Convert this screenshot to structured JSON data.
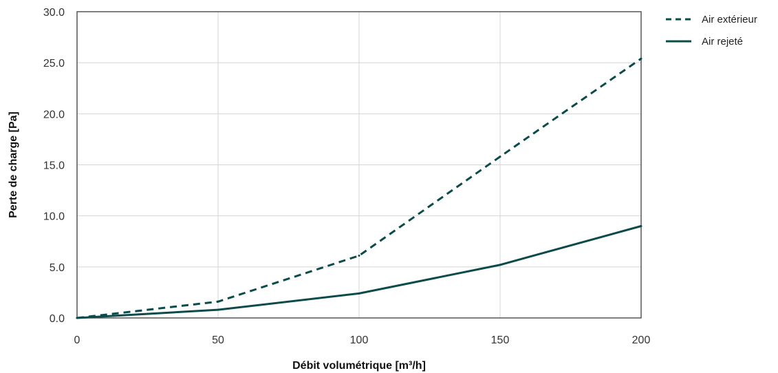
{
  "chart_data": {
    "type": "line",
    "xlabel": "Débit volumétrique [m³/h]",
    "ylabel": "Perte de charge [Pa]",
    "xlim": [
      0,
      200
    ],
    "ylim": [
      0,
      30
    ],
    "x_ticks": [
      "0",
      "50",
      "100",
      "150",
      "200"
    ],
    "y_ticks": [
      "0.0",
      "5.0",
      "10.0",
      "15.0",
      "20.0",
      "25.0",
      "30.0"
    ],
    "grid": true,
    "legend_position": "right",
    "series": [
      {
        "name": "Air extérieur",
        "style": "dashed",
        "color": "#0d4a4a",
        "x": [
          0,
          50,
          100,
          150,
          200
        ],
        "y": [
          0.0,
          1.6,
          6.1,
          15.8,
          25.4
        ]
      },
      {
        "name": "Air rejeté",
        "style": "solid",
        "color": "#0d4a4a",
        "x": [
          0,
          50,
          100,
          150,
          200
        ],
        "y": [
          0.0,
          0.8,
          2.4,
          5.2,
          9.0
        ]
      }
    ]
  }
}
